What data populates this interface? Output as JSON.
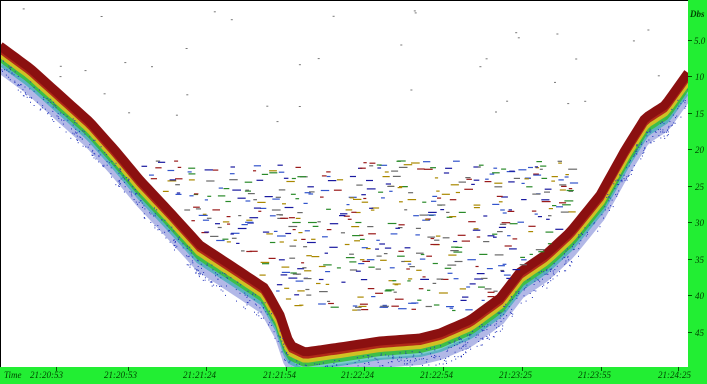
{
  "depth_axis": {
    "unit_label": "Dbs",
    "ticks": [
      "5.0",
      "10",
      "15",
      "20",
      "25",
      "30",
      "35",
      "40",
      "45"
    ],
    "values": [
      5,
      10,
      15,
      20,
      25,
      30,
      35,
      40,
      45
    ]
  },
  "time_axis": {
    "prefix_label": "Time",
    "ticks": [
      "21:20:53",
      "21:20:53",
      "21:21:24",
      "21:21:54",
      "21:22:24",
      "21:22:54",
      "21:23:25",
      "21:23:55",
      "21:24:25"
    ]
  },
  "colors": {
    "scale_background": "#22ee33",
    "bottom_core": "#8b1010",
    "bottom_layers": [
      "#8b1010",
      "#b02a18",
      "#e0c020",
      "#33bb33",
      "#22aaaa",
      "#2233bb"
    ],
    "fish_palette": [
      "#1a1aa0",
      "#2a8a2a",
      "#9a1a1a",
      "#6a6a6a",
      "#3355cc",
      "#aa8800"
    ]
  }
}
